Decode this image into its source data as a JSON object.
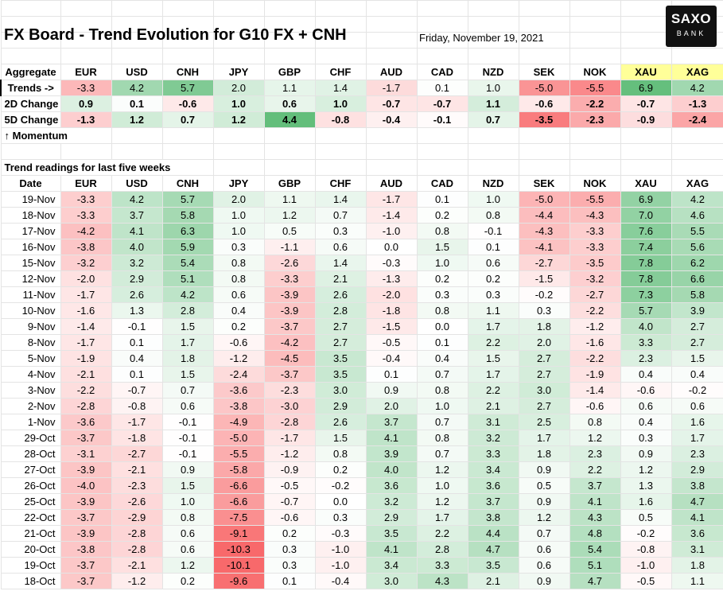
{
  "header": {
    "title": "FX Board - Trend Evolution for G10 FX + CNH",
    "date": "Friday, November 19, 2021",
    "logo_top": "SAXO",
    "logo_bottom": "BANK"
  },
  "labels": {
    "aggregate": "Aggregate",
    "trends": "Trends ->",
    "change_2d": "2D Change",
    "change_5d": "5D Change",
    "momentum": "↑ Momentum",
    "weeks_caption": "Trend readings for last five weeks",
    "date_col": "Date"
  },
  "currencies": [
    "EUR",
    "USD",
    "CNH",
    "JPY",
    "GBP",
    "CHF",
    "AUD",
    "CAD",
    "NZD",
    "SEK",
    "NOK",
    "XAU",
    "XAG"
  ],
  "highlight_color": "#ffff99",
  "aggregate": {
    "trends": [
      "-3.3",
      "4.2",
      "5.7",
      "2.0",
      "1.1",
      "1.4",
      "-1.7",
      "0.1",
      "1.0",
      "-5.0",
      "-5.5",
      "6.9",
      "4.2"
    ],
    "change_2d": [
      "0.9",
      "0.1",
      "-0.6",
      "1.0",
      "0.6",
      "1.0",
      "-0.7",
      "-0.7",
      "1.1",
      "-0.6",
      "-2.2",
      "-0.7",
      "-1.3"
    ],
    "change_5d": [
      "-1.3",
      "1.2",
      "0.7",
      "1.2",
      "4.4",
      "-0.8",
      "-0.4",
      "-0.1",
      "0.7",
      "-3.5",
      "-2.3",
      "-0.9",
      "-2.4"
    ]
  },
  "history": [
    {
      "date": "19-Nov",
      "values": [
        "-3.3",
        "4.2",
        "5.7",
        "2.0",
        "1.1",
        "1.4",
        "-1.7",
        "0.1",
        "1.0",
        "-5.0",
        "-5.5",
        "6.9",
        "4.2"
      ]
    },
    {
      "date": "18-Nov",
      "values": [
        "-3.3",
        "3.7",
        "5.8",
        "1.0",
        "1.2",
        "0.7",
        "-1.4",
        "0.2",
        "0.8",
        "-4.4",
        "-4.3",
        "7.0",
        "4.6"
      ]
    },
    {
      "date": "17-Nov",
      "values": [
        "-4.2",
        "4.1",
        "6.3",
        "1.0",
        "0.5",
        "0.3",
        "-1.0",
        "0.8",
        "-0.1",
        "-4.3",
        "-3.3",
        "7.6",
        "5.5"
      ]
    },
    {
      "date": "16-Nov",
      "values": [
        "-3.8",
        "4.0",
        "5.9",
        "0.3",
        "-1.1",
        "0.6",
        "0.0",
        "1.5",
        "0.1",
        "-4.1",
        "-3.3",
        "7.4",
        "5.6"
      ]
    },
    {
      "date": "15-Nov",
      "values": [
        "-3.2",
        "3.2",
        "5.4",
        "0.8",
        "-2.6",
        "1.4",
        "-0.3",
        "1.0",
        "0.6",
        "-2.7",
        "-3.5",
        "7.8",
        "6.2"
      ]
    },
    {
      "date": "12-Nov",
      "values": [
        "-2.0",
        "2.9",
        "5.1",
        "0.8",
        "-3.3",
        "2.1",
        "-1.3",
        "0.2",
        "0.2",
        "-1.5",
        "-3.2",
        "7.8",
        "6.6"
      ]
    },
    {
      "date": "11-Nov",
      "values": [
        "-1.7",
        "2.6",
        "4.2",
        "0.6",
        "-3.9",
        "2.6",
        "-2.0",
        "0.3",
        "0.3",
        "-0.2",
        "-2.7",
        "7.3",
        "5.8"
      ]
    },
    {
      "date": "10-Nov",
      "values": [
        "-1.6",
        "1.3",
        "2.8",
        "0.4",
        "-3.9",
        "2.8",
        "-1.8",
        "0.8",
        "1.1",
        "0.3",
        "-2.2",
        "5.7",
        "3.9"
      ]
    },
    {
      "date": "9-Nov",
      "values": [
        "-1.4",
        "-0.1",
        "1.5",
        "0.2",
        "-3.7",
        "2.7",
        "-1.5",
        "0.0",
        "1.7",
        "1.8",
        "-1.2",
        "4.0",
        "2.7"
      ]
    },
    {
      "date": "8-Nov",
      "values": [
        "-1.7",
        "0.1",
        "1.7",
        "-0.6",
        "-4.2",
        "2.7",
        "-0.5",
        "0.1",
        "2.2",
        "2.0",
        "-1.6",
        "3.3",
        "2.7"
      ]
    },
    {
      "date": "5-Nov",
      "values": [
        "-1.9",
        "0.4",
        "1.8",
        "-1.2",
        "-4.5",
        "3.5",
        "-0.4",
        "0.4",
        "1.5",
        "2.7",
        "-2.2",
        "2.3",
        "1.5"
      ]
    },
    {
      "date": "4-Nov",
      "values": [
        "-2.1",
        "0.1",
        "1.5",
        "-2.4",
        "-3.7",
        "3.5",
        "0.1",
        "0.7",
        "1.7",
        "2.7",
        "-1.9",
        "0.4",
        "0.4"
      ]
    },
    {
      "date": "3-Nov",
      "values": [
        "-2.2",
        "-0.7",
        "0.7",
        "-3.6",
        "-2.3",
        "3.0",
        "0.9",
        "0.8",
        "2.2",
        "3.0",
        "-1.4",
        "-0.6",
        "-0.2"
      ]
    },
    {
      "date": "2-Nov",
      "values": [
        "-2.8",
        "-0.8",
        "0.6",
        "-3.8",
        "-3.0",
        "2.9",
        "2.0",
        "1.0",
        "2.1",
        "2.7",
        "-0.6",
        "0.6",
        "0.6"
      ]
    },
    {
      "date": "1-Nov",
      "values": [
        "-3.6",
        "-1.7",
        "-0.1",
        "-4.9",
        "-2.8",
        "2.6",
        "3.7",
        "0.7",
        "3.1",
        "2.5",
        "0.8",
        "0.4",
        "1.6"
      ]
    },
    {
      "date": "29-Oct",
      "values": [
        "-3.7",
        "-1.8",
        "-0.1",
        "-5.0",
        "-1.7",
        "1.5",
        "4.1",
        "0.8",
        "3.2",
        "1.7",
        "1.2",
        "0.3",
        "1.7"
      ]
    },
    {
      "date": "28-Oct",
      "values": [
        "-3.1",
        "-2.7",
        "-0.1",
        "-5.5",
        "-1.2",
        "0.8",
        "3.9",
        "0.7",
        "3.3",
        "1.8",
        "2.3",
        "0.9",
        "2.3"
      ]
    },
    {
      "date": "27-Oct",
      "values": [
        "-3.9",
        "-2.1",
        "0.9",
        "-5.8",
        "-0.9",
        "0.2",
        "4.0",
        "1.2",
        "3.4",
        "0.9",
        "2.2",
        "1.2",
        "2.9"
      ]
    },
    {
      "date": "26-Oct",
      "values": [
        "-4.0",
        "-2.3",
        "1.5",
        "-6.6",
        "-0.5",
        "-0.2",
        "3.6",
        "1.0",
        "3.6",
        "0.5",
        "3.7",
        "1.3",
        "3.8"
      ]
    },
    {
      "date": "25-Oct",
      "values": [
        "-3.9",
        "-2.6",
        "1.0",
        "-6.6",
        "-0.7",
        "0.0",
        "3.2",
        "1.2",
        "3.7",
        "0.9",
        "4.1",
        "1.6",
        "4.7"
      ]
    },
    {
      "date": "22-Oct",
      "values": [
        "-3.7",
        "-2.9",
        "0.8",
        "-7.5",
        "-0.6",
        "0.3",
        "2.9",
        "1.7",
        "3.8",
        "1.2",
        "4.3",
        "0.5",
        "4.1"
      ]
    },
    {
      "date": "21-Oct",
      "values": [
        "-3.9",
        "-2.8",
        "0.6",
        "-9.1",
        "0.2",
        "-0.3",
        "3.5",
        "2.2",
        "4.4",
        "0.7",
        "4.8",
        "-0.2",
        "3.6"
      ]
    },
    {
      "date": "20-Oct",
      "values": [
        "-3.8",
        "-2.8",
        "0.6",
        "-10.3",
        "0.3",
        "-1.0",
        "4.1",
        "2.8",
        "4.7",
        "0.6",
        "5.4",
        "-0.8",
        "3.1"
      ]
    },
    {
      "date": "19-Oct",
      "values": [
        "-3.7",
        "-2.1",
        "1.2",
        "-10.1",
        "0.3",
        "-1.0",
        "3.4",
        "3.3",
        "3.5",
        "0.6",
        "5.1",
        "-1.0",
        "1.8"
      ]
    },
    {
      "date": "18-Oct",
      "values": [
        "-3.7",
        "-1.2",
        "0.2",
        "-9.6",
        "0.1",
        "-0.4",
        "3.0",
        "4.3",
        "2.1",
        "0.9",
        "4.7",
        "-0.5",
        "1.1"
      ]
    }
  ]
}
